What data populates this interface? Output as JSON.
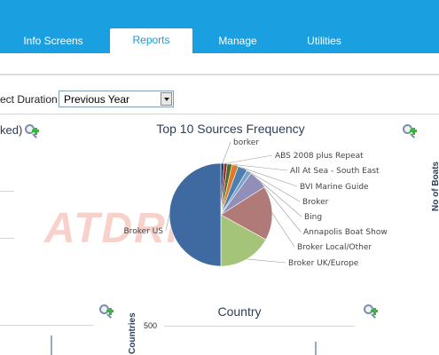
{
  "nav": {
    "tabs": [
      {
        "label": "Info Screens",
        "active": false
      },
      {
        "label": "Reports",
        "active": true
      },
      {
        "label": "Manage",
        "active": false
      },
      {
        "label": "Utilities",
        "active": false
      }
    ]
  },
  "filter": {
    "duration_label": "ect Duration",
    "duration_value": "Previous Year"
  },
  "panels": {
    "left_title": "ked)",
    "right_axis_label": "No of Boats",
    "countries_axis_label": "Countries",
    "countries_tick": "500",
    "country_title": "Country"
  },
  "watermark": "ATDRIVE",
  "colors": {
    "nav_bg": "#1aa0e0",
    "active_tab_text": "#1a9bd8"
  },
  "chart_data": {
    "type": "pie",
    "title": "Top 10 Sources Frequency",
    "slices": [
      {
        "label": "borker",
        "value": 1,
        "color": "#1f3a66"
      },
      {
        "label": "ABS 2008 plus Repeat",
        "value": 1,
        "color": "#8a2a28"
      },
      {
        "label": "All At Sea - South East",
        "value": 1.5,
        "color": "#4f6b2a"
      },
      {
        "label": "BVI Marine Guide",
        "value": 2,
        "color": "#e07a2a"
      },
      {
        "label": "Broker",
        "value": 3,
        "color": "#4a7fb0"
      },
      {
        "label": "Bing",
        "value": 1.5,
        "color": "#7aa0cc"
      },
      {
        "label": "Annapolis Boat Show",
        "value": 6,
        "color": "#8f8fb8"
      },
      {
        "label": "Broker Local/Other",
        "value": 17,
        "color": "#b07a78"
      },
      {
        "label": "Broker UK/Europe",
        "value": 17,
        "color": "#a4c47a"
      },
      {
        "label": "Broker US",
        "value": 50,
        "color": "#3f6aa1"
      }
    ]
  }
}
